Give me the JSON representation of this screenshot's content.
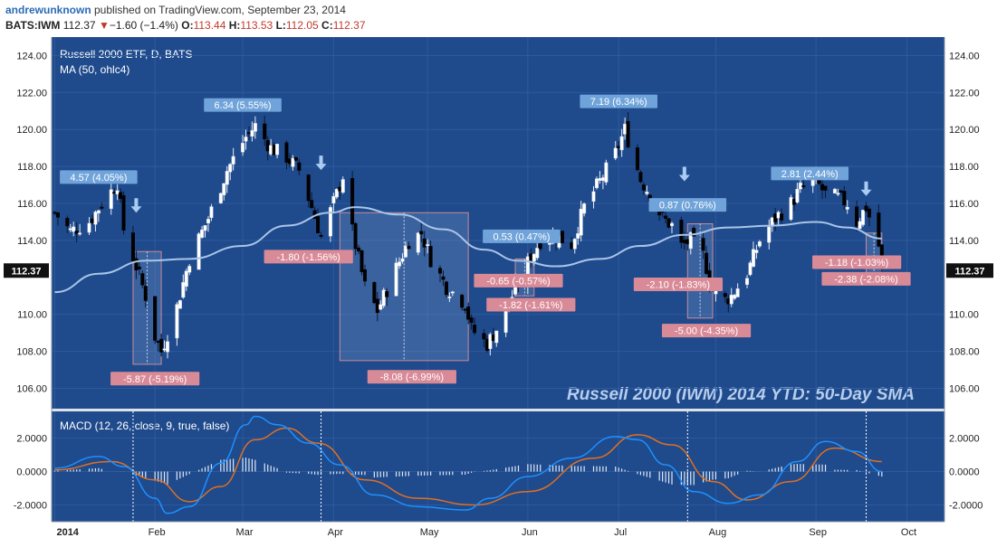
{
  "header": {
    "author": "andrewunknown",
    "published": " published on TradingView.com, September 23, 2014",
    "symbol": "BATS:IWM",
    "last": "112.37",
    "change_arrow": "▼",
    "change": "−1.60 (−1.4%)",
    "o_label": "O:",
    "o_value": "113.44",
    "h_label": "H:",
    "h_value": "113.53",
    "l_label": "L:",
    "l_value": "112.05",
    "c_label": "C:",
    "c_value": "112.37"
  },
  "colors": {
    "background": "#1f4a8c",
    "bull_candle": "#ffffff",
    "bear_candle": "#000000",
    "ma_line": "#a9c6e8",
    "macd_line": "#1e90ff",
    "signal_line": "#e07020",
    "histogram": "#dfe8f5",
    "up_label": "#6fa3d9",
    "down_label": "#d98a97",
    "price_tag": "#111111"
  },
  "chart_data": [
    {
      "type": "candlestick",
      "title": "Russell 2000 ETF, D, BATS",
      "indicator_label": "MA (50, ohlc4)",
      "watermark": "Russell 2000 (IWM) 2014 YTD: 50-Day SMA",
      "last_price_tag": "112.37",
      "ylim": [
        104.9,
        125.0
      ],
      "y_ticks": [
        "124.00",
        "122.00",
        "120.00",
        "118.00",
        "116.00",
        "114.00",
        "110.00",
        "108.00",
        "106.00"
      ],
      "x_ticks": [
        "2014",
        "Feb",
        "Mar",
        "Apr",
        "May",
        "Jun",
        "Jul",
        "Aug",
        "Sep",
        "Oct"
      ],
      "x_tick_dates": [
        "2014-01-02",
        "2014-02-03",
        "2014-03-03",
        "2014-04-01",
        "2014-05-01",
        "2014-06-02",
        "2014-07-01",
        "2014-08-01",
        "2014-09-02",
        "2014-10-01"
      ],
      "x_date_range": [
        "2014-01-01",
        "2014-10-13"
      ],
      "close_path": [
        {
          "date": "2014-01-02",
          "value": 115.5
        },
        {
          "date": "2014-01-07",
          "value": 114.5
        },
        {
          "date": "2014-01-13",
          "value": 115.0
        },
        {
          "date": "2014-01-17",
          "value": 116.0
        },
        {
          "date": "2014-01-22",
          "value": 117.1
        },
        {
          "date": "2014-01-24",
          "value": 114.6
        },
        {
          "date": "2014-01-28",
          "value": 112.6
        },
        {
          "date": "2014-01-31",
          "value": 111.0
        },
        {
          "date": "2014-02-03",
          "value": 108.8
        },
        {
          "date": "2014-02-05",
          "value": 108.0
        },
        {
          "date": "2014-02-10",
          "value": 110.4
        },
        {
          "date": "2014-02-14",
          "value": 113.0
        },
        {
          "date": "2014-02-20",
          "value": 115.2
        },
        {
          "date": "2014-02-26",
          "value": 117.8
        },
        {
          "date": "2014-03-04",
          "value": 119.6
        },
        {
          "date": "2014-03-07",
          "value": 120.2
        },
        {
          "date": "2014-03-12",
          "value": 119.0
        },
        {
          "date": "2014-03-17",
          "value": 118.5
        },
        {
          "date": "2014-03-21",
          "value": 117.8
        },
        {
          "date": "2014-03-25",
          "value": 115.8
        },
        {
          "date": "2014-03-28",
          "value": 114.2
        },
        {
          "date": "2014-04-02",
          "value": 116.5
        },
        {
          "date": "2014-04-04",
          "value": 117.5
        },
        {
          "date": "2014-04-07",
          "value": 114.5
        },
        {
          "date": "2014-04-11",
          "value": 111.5
        },
        {
          "date": "2014-04-15",
          "value": 110.2
        },
        {
          "date": "2014-04-21",
          "value": 112.5
        },
        {
          "date": "2014-04-25",
          "value": 114.0
        },
        {
          "date": "2014-04-29",
          "value": 114.4
        },
        {
          "date": "2014-05-02",
          "value": 113.0
        },
        {
          "date": "2014-05-07",
          "value": 111.5
        },
        {
          "date": "2014-05-13",
          "value": 110.6
        },
        {
          "date": "2014-05-15",
          "value": 109.2
        },
        {
          "date": "2014-05-20",
          "value": 108.4
        },
        {
          "date": "2014-05-23",
          "value": 109.2
        },
        {
          "date": "2014-05-28",
          "value": 111.0
        },
        {
          "date": "2014-06-02",
          "value": 112.8
        },
        {
          "date": "2014-06-06",
          "value": 114.0
        },
        {
          "date": "2014-06-11",
          "value": 114.2
        },
        {
          "date": "2014-06-16",
          "value": 113.8
        },
        {
          "date": "2014-06-20",
          "value": 115.8
        },
        {
          "date": "2014-06-25",
          "value": 117.2
        },
        {
          "date": "2014-06-30",
          "value": 118.7
        },
        {
          "date": "2014-07-03",
          "value": 120.0
        },
        {
          "date": "2014-07-08",
          "value": 117.3
        },
        {
          "date": "2014-07-11",
          "value": 116.5
        },
        {
          "date": "2014-07-15",
          "value": 115.2
        },
        {
          "date": "2014-07-18",
          "value": 114.8
        },
        {
          "date": "2014-07-21",
          "value": 113.7
        },
        {
          "date": "2014-07-24",
          "value": 114.0
        },
        {
          "date": "2014-07-28",
          "value": 113.2
        },
        {
          "date": "2014-07-31",
          "value": 111.3
        },
        {
          "date": "2014-08-04",
          "value": 110.8
        },
        {
          "date": "2014-08-06",
          "value": 111.0
        },
        {
          "date": "2014-08-11",
          "value": 112.2
        },
        {
          "date": "2014-08-15",
          "value": 114.0
        },
        {
          "date": "2014-08-20",
          "value": 115.2
        },
        {
          "date": "2014-08-25",
          "value": 116.0
        },
        {
          "date": "2014-08-28",
          "value": 116.8
        },
        {
          "date": "2014-09-02",
          "value": 117.2
        },
        {
          "date": "2014-09-05",
          "value": 116.5
        },
        {
          "date": "2014-09-09",
          "value": 116.3
        },
        {
          "date": "2014-09-12",
          "value": 116.0
        },
        {
          "date": "2014-09-15",
          "value": 115.0
        },
        {
          "date": "2014-09-18",
          "value": 115.8
        },
        {
          "date": "2014-09-22",
          "value": 113.7
        },
        {
          "date": "2014-09-23",
          "value": 112.37
        }
      ],
      "ma50": [
        {
          "date": "2014-01-02",
          "value": 111.2
        },
        {
          "date": "2014-01-16",
          "value": 112.2
        },
        {
          "date": "2014-01-31",
          "value": 112.9
        },
        {
          "date": "2014-02-14",
          "value": 113.0
        },
        {
          "date": "2014-03-03",
          "value": 113.7
        },
        {
          "date": "2014-03-17",
          "value": 114.8
        },
        {
          "date": "2014-03-31",
          "value": 115.5
        },
        {
          "date": "2014-04-08",
          "value": 115.8
        },
        {
          "date": "2014-04-22",
          "value": 115.4
        },
        {
          "date": "2014-05-06",
          "value": 114.6
        },
        {
          "date": "2014-05-19",
          "value": 113.5
        },
        {
          "date": "2014-05-30",
          "value": 112.9
        },
        {
          "date": "2014-06-11",
          "value": 112.6
        },
        {
          "date": "2014-06-25",
          "value": 113.0
        },
        {
          "date": "2014-07-08",
          "value": 113.7
        },
        {
          "date": "2014-07-22",
          "value": 114.3
        },
        {
          "date": "2014-08-05",
          "value": 114.7
        },
        {
          "date": "2014-08-19",
          "value": 114.8
        },
        {
          "date": "2014-09-02",
          "value": 115.0
        },
        {
          "date": "2014-09-12",
          "value": 114.7
        },
        {
          "date": "2014-09-23",
          "value": 114.1
        }
      ],
      "annotations": [
        {
          "text": "4.57 (4.05%)",
          "kind": "up",
          "date": "2014-01-16",
          "value": 117.4
        },
        {
          "text": "6.34 (5.55%)",
          "kind": "up",
          "date": "2014-03-03",
          "value": 121.3
        },
        {
          "text": "-1.80 (-1.56%)",
          "kind": "down",
          "date": "2014-03-24",
          "value": 113.1
        },
        {
          "text": "-5.87 (-5.19%)",
          "kind": "down",
          "date": "2014-02-03",
          "value": 106.5
        },
        {
          "text": "-8.08 (-6.99%)",
          "kind": "down",
          "date": "2014-04-26",
          "value": 106.6
        },
        {
          "text": "0.53 (0.47%)",
          "kind": "up",
          "date": "2014-05-31",
          "value": 114.2
        },
        {
          "text": "-0.65 (-0.57%)",
          "kind": "down",
          "date": "2014-05-30",
          "value": 111.8
        },
        {
          "text": "-1.82 (-1.61%)",
          "kind": "down",
          "date": "2014-06-03",
          "value": 110.5
        },
        {
          "text": "7.19 (6.34%)",
          "kind": "up",
          "date": "2014-07-01",
          "value": 121.5
        },
        {
          "text": "0.87 (0.76%)",
          "kind": "up",
          "date": "2014-07-23",
          "value": 115.9
        },
        {
          "text": "-2.10 (-1.83%)",
          "kind": "down",
          "date": "2014-07-20",
          "value": 111.6
        },
        {
          "text": "-5.00 (-4.35%)",
          "kind": "down",
          "date": "2014-07-29",
          "value": 109.1
        },
        {
          "text": "2.81 (2.44%)",
          "kind": "up",
          "date": "2014-08-31",
          "value": 117.6
        },
        {
          "text": "-1.18 (-1.03%)",
          "kind": "down",
          "date": "2014-09-15",
          "value": 112.8
        },
        {
          "text": "-2.38 (-2.08%)",
          "kind": "down",
          "date": "2014-09-18",
          "value": 111.9
        }
      ],
      "arrows": [
        {
          "date": "2014-01-28",
          "value": 115.6
        },
        {
          "date": "2014-03-28",
          "value": 117.9
        },
        {
          "date": "2014-07-22",
          "value": 117.3
        },
        {
          "date": "2014-09-18",
          "value": 116.5
        }
      ],
      "range_boxes": [
        {
          "start": "2014-01-27",
          "end": "2014-02-05",
          "low": 107.3,
          "high": 113.4
        },
        {
          "start": "2014-04-03",
          "end": "2014-05-14",
          "low": 107.5,
          "high": 115.5
        },
        {
          "start": "2014-05-29",
          "end": "2014-06-04",
          "low": 111.0,
          "high": 113.0
        },
        {
          "start": "2014-07-23",
          "end": "2014-07-31",
          "low": 109.8,
          "high": 114.9
        },
        {
          "start": "2014-09-18",
          "end": "2014-09-23",
          "low": 112.0,
          "high": 114.4
        }
      ]
    },
    {
      "type": "line",
      "title": "MACD (12, 26, close, 9, true, false)",
      "ylim": [
        -3.0,
        3.6
      ],
      "y_ticks": [
        "2.0000",
        "0.0000",
        "-2.0000"
      ],
      "y_tick_values": [
        2.0,
        0.0,
        -2.0
      ],
      "series": [
        {
          "name": "MACD",
          "values": [
            {
              "date": "2014-01-02",
              "value": 0.2
            },
            {
              "date": "2014-01-16",
              "value": 0.9
            },
            {
              "date": "2014-01-24",
              "value": 0.3
            },
            {
              "date": "2014-02-03",
              "value": -1.6
            },
            {
              "date": "2014-02-07",
              "value": -2.5
            },
            {
              "date": "2014-02-14",
              "value": -2.1
            },
            {
              "date": "2014-02-24",
              "value": 0.5
            },
            {
              "date": "2014-03-04",
              "value": 2.8
            },
            {
              "date": "2014-03-07",
              "value": 3.3
            },
            {
              "date": "2014-03-14",
              "value": 2.8
            },
            {
              "date": "2014-03-24",
              "value": 1.7
            },
            {
              "date": "2014-04-03",
              "value": 0.4
            },
            {
              "date": "2014-04-14",
              "value": -1.4
            },
            {
              "date": "2014-04-28",
              "value": -2.1
            },
            {
              "date": "2014-05-13",
              "value": -2.3
            },
            {
              "date": "2014-05-21",
              "value": -1.6
            },
            {
              "date": "2014-06-02",
              "value": -0.3
            },
            {
              "date": "2014-06-16",
              "value": 0.8
            },
            {
              "date": "2014-06-30",
              "value": 2.1
            },
            {
              "date": "2014-07-07",
              "value": 1.9
            },
            {
              "date": "2014-07-16",
              "value": 0.4
            },
            {
              "date": "2014-07-25",
              "value": -1.2
            },
            {
              "date": "2014-08-05",
              "value": -1.9
            },
            {
              "date": "2014-08-15",
              "value": -1.4
            },
            {
              "date": "2014-08-27",
              "value": 0.6
            },
            {
              "date": "2014-09-05",
              "value": 1.8
            },
            {
              "date": "2014-09-15",
              "value": 1.2
            },
            {
              "date": "2014-09-23",
              "value": 0.0
            }
          ]
        },
        {
          "name": "Signal",
          "values": [
            {
              "date": "2014-01-02",
              "value": 0.1
            },
            {
              "date": "2014-01-20",
              "value": 0.6
            },
            {
              "date": "2014-02-03",
              "value": -0.5
            },
            {
              "date": "2014-02-14",
              "value": -1.8
            },
            {
              "date": "2014-02-24",
              "value": -0.9
            },
            {
              "date": "2014-03-07",
              "value": 1.9
            },
            {
              "date": "2014-03-17",
              "value": 2.6
            },
            {
              "date": "2014-03-27",
              "value": 1.7
            },
            {
              "date": "2014-04-11",
              "value": -0.5
            },
            {
              "date": "2014-04-28",
              "value": -1.6
            },
            {
              "date": "2014-05-16",
              "value": -2.0
            },
            {
              "date": "2014-06-02",
              "value": -1.2
            },
            {
              "date": "2014-06-23",
              "value": 0.8
            },
            {
              "date": "2014-07-07",
              "value": 2.2
            },
            {
              "date": "2014-07-18",
              "value": 1.6
            },
            {
              "date": "2014-07-31",
              "value": -0.6
            },
            {
              "date": "2014-08-11",
              "value": -1.7
            },
            {
              "date": "2014-08-25",
              "value": -0.6
            },
            {
              "date": "2014-09-08",
              "value": 1.4
            },
            {
              "date": "2014-09-23",
              "value": 0.6
            }
          ]
        }
      ],
      "histogram_amplitude": 0.5
    }
  ],
  "chart_labels": {
    "macd_title": "MACD (12, 26, close, 9, true, false)"
  }
}
